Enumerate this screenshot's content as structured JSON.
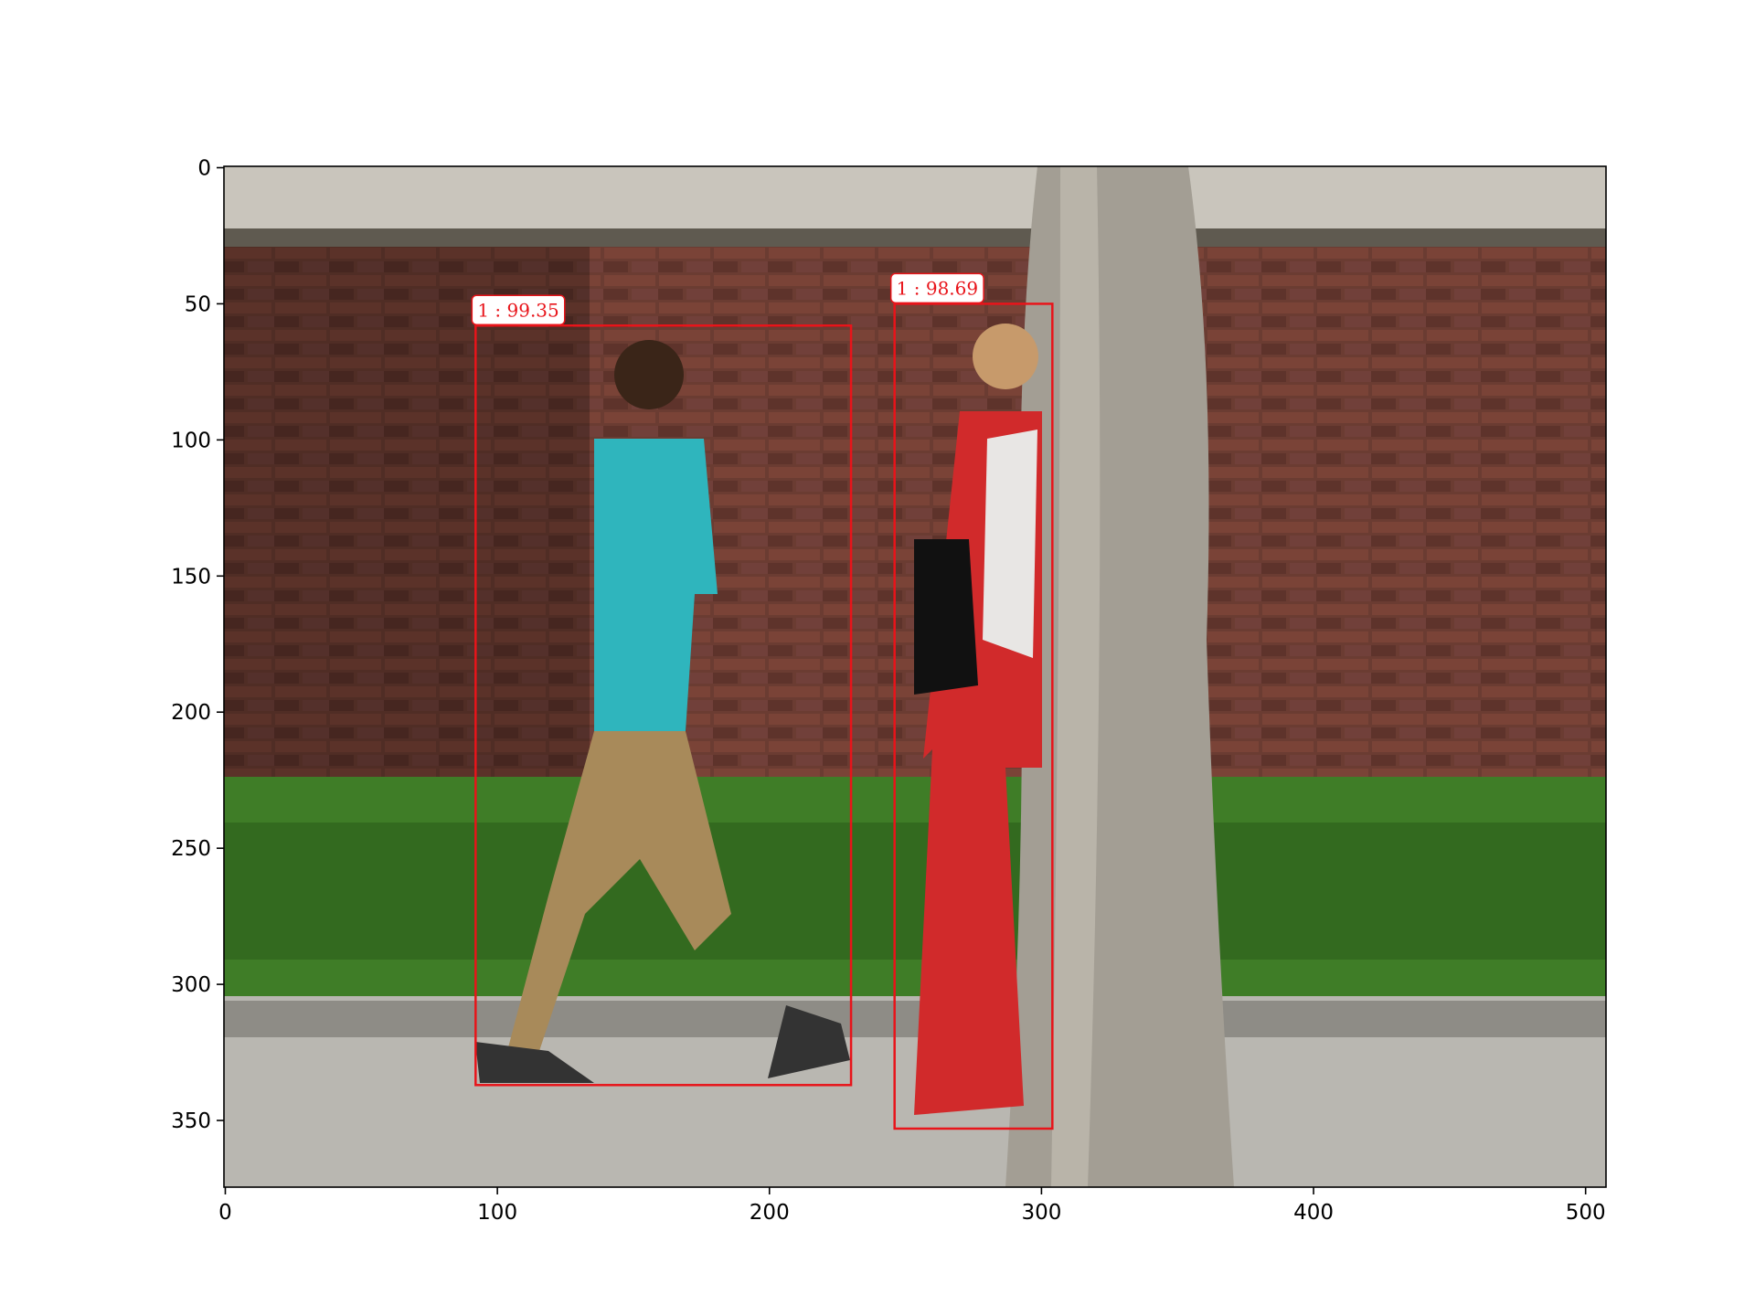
{
  "chart_data": {
    "type": "image",
    "xlim": [
      -0.5,
      507.5
    ],
    "ylim": [
      374.5,
      -0.5
    ],
    "xticks": [
      0,
      100,
      200,
      300,
      400,
      500
    ],
    "yticks": [
      0,
      50,
      100,
      150,
      200,
      250,
      300,
      350
    ],
    "box_color": "#e8141a",
    "boxes": [
      {
        "label": "1 : 99.35",
        "x0": 92,
        "y0": 58,
        "x1": 230,
        "y1": 337
      },
      {
        "label": "1 : 98.69",
        "x0": 246,
        "y0": 50,
        "x1": 304,
        "y1": 353
      }
    ]
  }
}
